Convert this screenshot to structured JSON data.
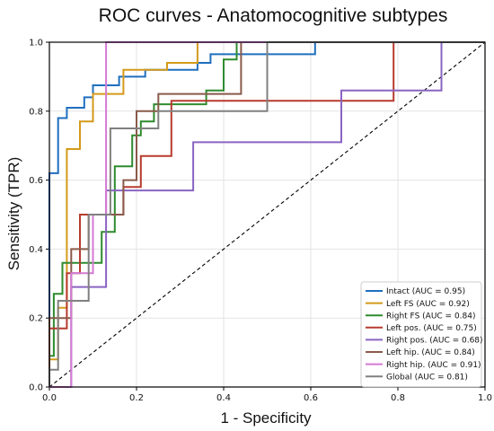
{
  "chart_data": {
    "type": "line",
    "title": "ROC curves - Anatomocognitive subtypes",
    "xlabel": "1 - Specificity",
    "ylabel": "Sensitivity (TPR)",
    "xlim": [
      0,
      1
    ],
    "ylim": [
      0,
      1.0
    ],
    "x_ticks": [
      "0.0",
      "0.2",
      "0.4",
      "0.6",
      "0.8",
      "1.0"
    ],
    "y_ticks": [
      "0.0",
      "0.2",
      "0.4",
      "0.6",
      "0.8",
      "1.0"
    ],
    "grid": true,
    "legend_position": "lower-right",
    "reference_line": {
      "style": "dashed",
      "color": "#000000",
      "points": [
        [
          0,
          0
        ],
        [
          1,
          1
        ]
      ]
    },
    "series": [
      {
        "name": "Intact (AUC = 0.95)",
        "color": "#1f6fbf",
        "points": [
          [
            0,
            0
          ],
          [
            0,
            0.62
          ],
          [
            0.02,
            0.62
          ],
          [
            0.02,
            0.78
          ],
          [
            0.04,
            0.78
          ],
          [
            0.04,
            0.81
          ],
          [
            0.08,
            0.81
          ],
          [
            0.08,
            0.84
          ],
          [
            0.1,
            0.84
          ],
          [
            0.1,
            0.875
          ],
          [
            0.16,
            0.875
          ],
          [
            0.16,
            0.9
          ],
          [
            0.22,
            0.9
          ],
          [
            0.22,
            0.92
          ],
          [
            0.34,
            0.92
          ],
          [
            0.34,
            0.94
          ],
          [
            0.37,
            0.94
          ],
          [
            0.37,
            0.965
          ],
          [
            0.61,
            0.965
          ],
          [
            0.61,
            1.0
          ],
          [
            1,
            1
          ]
        ]
      },
      {
        "name": "Left FS (AUC = 0.92)",
        "color": "#d49a1a",
        "points": [
          [
            0,
            0
          ],
          [
            0,
            0.08
          ],
          [
            0.02,
            0.08
          ],
          [
            0.02,
            0.23
          ],
          [
            0.04,
            0.23
          ],
          [
            0.04,
            0.69
          ],
          [
            0.07,
            0.69
          ],
          [
            0.07,
            0.77
          ],
          [
            0.1,
            0.77
          ],
          [
            0.1,
            0.85
          ],
          [
            0.17,
            0.85
          ],
          [
            0.17,
            0.92
          ],
          [
            0.27,
            0.92
          ],
          [
            0.27,
            0.94
          ],
          [
            0.34,
            0.94
          ],
          [
            0.34,
            1.0
          ],
          [
            1,
            1
          ]
        ]
      },
      {
        "name": "Right FS (AUC = 0.84)",
        "color": "#2e8b2e",
        "points": [
          [
            0,
            0
          ],
          [
            0,
            0.09
          ],
          [
            0.01,
            0.09
          ],
          [
            0.01,
            0.27
          ],
          [
            0.03,
            0.27
          ],
          [
            0.03,
            0.36
          ],
          [
            0.12,
            0.36
          ],
          [
            0.12,
            0.45
          ],
          [
            0.15,
            0.45
          ],
          [
            0.15,
            0.64
          ],
          [
            0.19,
            0.64
          ],
          [
            0.19,
            0.73
          ],
          [
            0.21,
            0.73
          ],
          [
            0.21,
            0.77
          ],
          [
            0.24,
            0.77
          ],
          [
            0.24,
            0.82
          ],
          [
            0.36,
            0.82
          ],
          [
            0.36,
            0.86
          ],
          [
            0.4,
            0.86
          ],
          [
            0.4,
            0.95
          ],
          [
            0.43,
            0.95
          ],
          [
            0.43,
            1.0
          ],
          [
            1,
            1
          ]
        ]
      },
      {
        "name": "Left pos. (AUC = 0.75)",
        "color": "#b83a2e",
        "points": [
          [
            0,
            0
          ],
          [
            0,
            0.17
          ],
          [
            0.04,
            0.17
          ],
          [
            0.04,
            0.33
          ],
          [
            0.07,
            0.33
          ],
          [
            0.07,
            0.5
          ],
          [
            0.17,
            0.5
          ],
          [
            0.17,
            0.58
          ],
          [
            0.21,
            0.58
          ],
          [
            0.21,
            0.67
          ],
          [
            0.28,
            0.67
          ],
          [
            0.28,
            0.83
          ],
          [
            0.79,
            0.83
          ],
          [
            0.79,
            1.0
          ],
          [
            1,
            1
          ]
        ]
      },
      {
        "name": "Right pos. (AUC = 0.68)",
        "color": "#8a64c2",
        "points": [
          [
            0,
            0
          ],
          [
            0.05,
            0
          ],
          [
            0.05,
            0.29
          ],
          [
            0.13,
            0.29
          ],
          [
            0.13,
            0.57
          ],
          [
            0.33,
            0.57
          ],
          [
            0.33,
            0.71
          ],
          [
            0.67,
            0.71
          ],
          [
            0.67,
            0.86
          ],
          [
            0.9,
            0.86
          ],
          [
            0.9,
            1.0
          ],
          [
            1,
            1
          ]
        ]
      },
      {
        "name": "Left hip. (AUC = 0.84)",
        "color": "#8a5a4a",
        "points": [
          [
            0,
            0
          ],
          [
            0,
            0.2
          ],
          [
            0.05,
            0.2
          ],
          [
            0.05,
            0.4
          ],
          [
            0.09,
            0.4
          ],
          [
            0.09,
            0.5
          ],
          [
            0.17,
            0.5
          ],
          [
            0.17,
            0.6
          ],
          [
            0.2,
            0.6
          ],
          [
            0.2,
            0.8
          ],
          [
            0.25,
            0.8
          ],
          [
            0.25,
            0.85
          ],
          [
            0.44,
            0.85
          ],
          [
            0.44,
            1.0
          ],
          [
            1,
            1
          ]
        ]
      },
      {
        "name": "Right hip. (AUC = 0.91)",
        "color": "#d47ad4",
        "points": [
          [
            0,
            0
          ],
          [
            0.05,
            0
          ],
          [
            0.05,
            0.33
          ],
          [
            0.1,
            0.33
          ],
          [
            0.1,
            0.5
          ],
          [
            0.13,
            0.5
          ],
          [
            0.13,
            1.0
          ],
          [
            1,
            1
          ]
        ]
      },
      {
        "name": "Global (AUC = 0.81)",
        "color": "#808080",
        "points": [
          [
            0,
            0
          ],
          [
            0,
            0.05
          ],
          [
            0.02,
            0.05
          ],
          [
            0.02,
            0.25
          ],
          [
            0.09,
            0.25
          ],
          [
            0.09,
            0.5
          ],
          [
            0.14,
            0.5
          ],
          [
            0.14,
            0.75
          ],
          [
            0.25,
            0.75
          ],
          [
            0.25,
            0.8
          ],
          [
            0.5,
            0.8
          ],
          [
            0.5,
            1.0
          ],
          [
            1,
            1
          ]
        ]
      }
    ]
  }
}
